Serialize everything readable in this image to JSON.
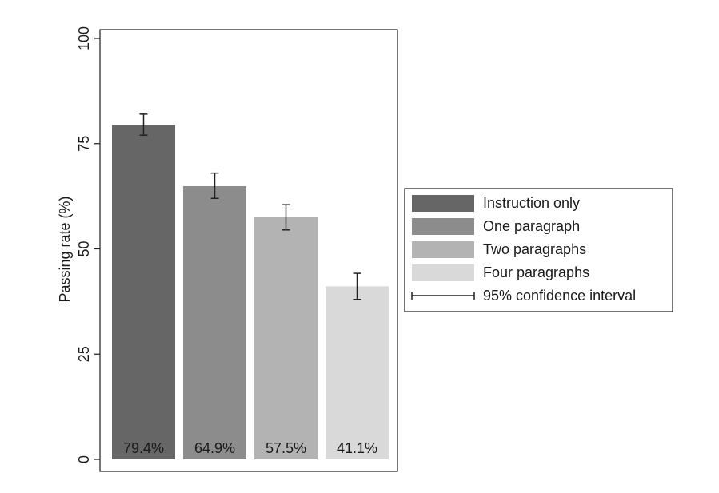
{
  "chart_data": {
    "type": "bar",
    "title": "",
    "xlabel": "",
    "ylabel": "Passing rate (%)",
    "ylim": [
      0,
      100
    ],
    "yticks": [
      0,
      25,
      50,
      75,
      100
    ],
    "grid": false,
    "legend_position": "right",
    "categories": [
      "Instruction only",
      "One paragraph",
      "Two paragraphs",
      "Four paragraphs"
    ],
    "values": [
      79.4,
      64.9,
      57.5,
      41.1
    ],
    "value_labels": [
      "79.4%",
      "64.9%",
      "57.5%",
      "41.1%"
    ],
    "ci_lower": [
      77.0,
      62.0,
      54.5,
      38.0
    ],
    "ci_upper": [
      82.0,
      68.0,
      60.5,
      44.2
    ],
    "colors": [
      "#666666",
      "#8c8c8c",
      "#b3b3b3",
      "#d9d9d9"
    ],
    "error_bar_color": "#222222",
    "legend": {
      "items": [
        "Instruction only",
        "One paragraph",
        "Two paragraphs",
        "Four paragraphs"
      ],
      "ci_label": "95% confidence interval"
    }
  }
}
